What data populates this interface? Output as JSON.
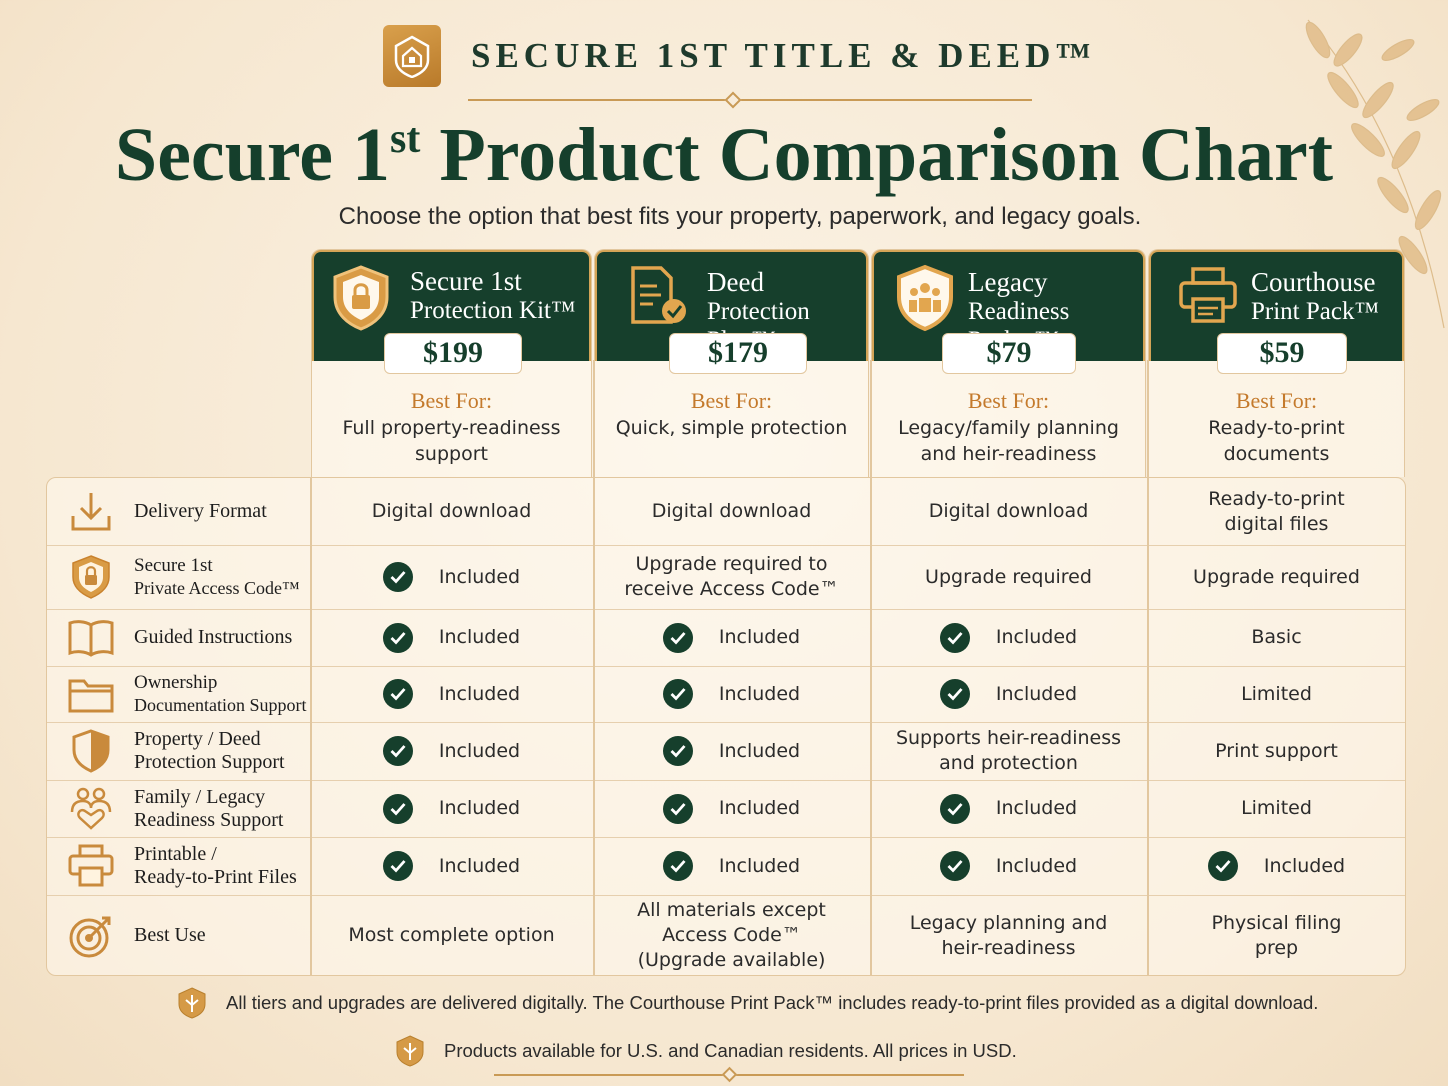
{
  "brand": {
    "name": "SECURE 1ST TITLE & DEED™"
  },
  "title": {
    "main": "Secure 1",
    "sup": "st",
    "rest": " Product Comparison Chart"
  },
  "subtitle": "Choose the option that best fits your property, paperwork, and legacy goals.",
  "colors": {
    "green": "#163f2c",
    "gold": "#c47a2c",
    "cream": "#f8ecda"
  },
  "products": [
    {
      "line1": "Secure 1st",
      "line2": "Protection Kit™",
      "price": "$199",
      "best_for_label": "Best For:",
      "best_for": "Full property-readiness support",
      "icon": "shield-lock-icon"
    },
    {
      "line1": "Deed",
      "line2": "Protection Plan™",
      "price": "$179",
      "best_for_label": "Best For:",
      "best_for": "Quick, simple protection",
      "icon": "document-check-icon"
    },
    {
      "line1": "Legacy",
      "line2": "Readiness Packet™",
      "price": "$79",
      "best_for_label": "Best For:",
      "best_for": "Legacy/family planning and heir-readiness",
      "icon": "family-badge-icon"
    },
    {
      "line1": "Courthouse",
      "line2": "Print Pack™",
      "price": "$59",
      "best_for_label": "Best For:",
      "best_for": "Ready-to-print documents",
      "icon": "printer-icon"
    }
  ],
  "rows": [
    {
      "label1": "Delivery Format",
      "label2": "",
      "icon": "download-icon",
      "cells": [
        "Digital download",
        "Digital download",
        "Digital download",
        "Ready-to-print digital files"
      ],
      "checks": [
        false,
        false,
        false,
        false
      ]
    },
    {
      "label1": "Secure 1st",
      "label2": "Private Access Code™",
      "icon": "shield-lock-icon",
      "cells": [
        "Included",
        "Upgrade required to receive Access Code™",
        "Upgrade required",
        "Upgrade required"
      ],
      "checks": [
        true,
        false,
        false,
        false
      ]
    },
    {
      "label1": "Guided Instructions",
      "label2": "",
      "icon": "book-icon",
      "cells": [
        "Included",
        "Included",
        "Included",
        "Basic"
      ],
      "checks": [
        true,
        true,
        true,
        false
      ]
    },
    {
      "label1": "Ownership",
      "label2": "Documentation Support",
      "icon": "folder-icon",
      "cells": [
        "Included",
        "Included",
        "Included",
        "Limited"
      ],
      "checks": [
        true,
        true,
        true,
        false
      ]
    },
    {
      "label1": "Property / Deed",
      "label2": "Protection Support",
      "icon": "shield-icon",
      "cells": [
        "Included",
        "Included",
        "Supports heir-readiness and protection",
        "Print support"
      ],
      "checks": [
        true,
        true,
        false,
        false
      ]
    },
    {
      "label1": "Family / Legacy",
      "label2": "Readiness Support",
      "icon": "family-heart-icon",
      "cells": [
        "Included",
        "Included",
        "Included",
        "Limited"
      ],
      "checks": [
        true,
        true,
        true,
        false
      ]
    },
    {
      "label1": "Printable /",
      "label2": "Ready-to-Print Files",
      "icon": "printer-icon",
      "cells": [
        "Included",
        "Included",
        "Included",
        "Included"
      ],
      "checks": [
        true,
        true,
        true,
        true
      ]
    },
    {
      "label1": "Best Use",
      "label2": "",
      "icon": "target-icon",
      "cells": [
        "Most complete option",
        "All materials except Access Code™ (Upgrade available)",
        "Legacy planning and heir-readiness",
        "Physical filing prep"
      ],
      "checks": [
        false,
        false,
        false,
        false
      ]
    }
  ],
  "footnotes": [
    "All tiers and upgrades are delivered digitally. The Courthouse Print Pack™ includes ready-to-print files provided as a digital download.",
    "Products available for U.S. and Canadian residents. All prices in USD."
  ]
}
